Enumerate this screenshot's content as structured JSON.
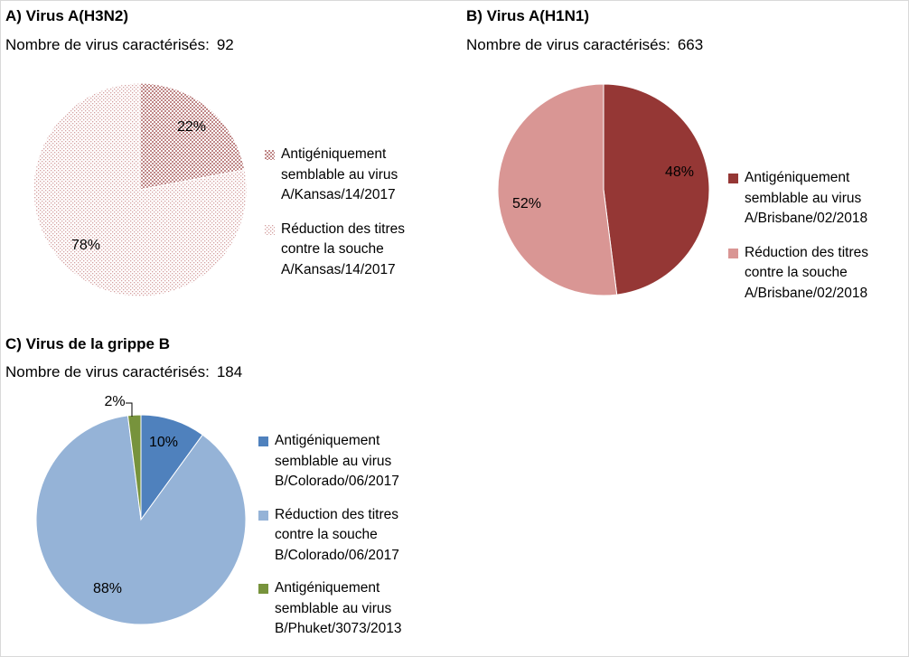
{
  "chart_data": [
    {
      "type": "pie",
      "title": "A) Virus A(H3N2)",
      "count_label": "Nombre de virus caractérisés:",
      "count": "92",
      "slices": [
        {
          "label": "Antigéniquement semblable au virus A/Kansas/14/2017",
          "value": 22,
          "text": "22%",
          "color": "#c08888",
          "pattern": "dense-check"
        },
        {
          "label": "Réduction des titres contre la souche A/Kansas/14/2017",
          "value": 78,
          "text": "78%",
          "color": "#d8a8a8",
          "pattern": "sparse-dots"
        }
      ],
      "legend_position": "right"
    },
    {
      "type": "pie",
      "title": "B) Virus A(H1N1)",
      "count_label": "Nombre de virus caractérisés:",
      "count": "663",
      "slices": [
        {
          "label": "Antigéniquement semblable au virus A/Brisbane/02/2018",
          "value": 48,
          "text": "48%",
          "color": "#953735"
        },
        {
          "label": "Réduction des titres contre la souche A/Brisbane/02/2018",
          "value": 52,
          "text": "52%",
          "color": "#d99694"
        }
      ],
      "legend_position": "right"
    },
    {
      "type": "pie",
      "title": "C) Virus de la grippe B",
      "count_label": "Nombre de virus caractérisés:",
      "count": "184",
      "slices": [
        {
          "label": "Antigéniquement semblable au virus B/Colorado/06/2017",
          "value": 10,
          "text": "10%",
          "color": "#4f81bd"
        },
        {
          "label": "Réduction des titres contre la souche B/Colorado/06/2017",
          "value": 88,
          "text": "88%",
          "color": "#95b3d7"
        },
        {
          "label": "Antigéniquement semblable au virus B/Phuket/3073/2013",
          "value": 2,
          "text": "2%",
          "color": "#77933c"
        }
      ],
      "legend_position": "right"
    }
  ]
}
